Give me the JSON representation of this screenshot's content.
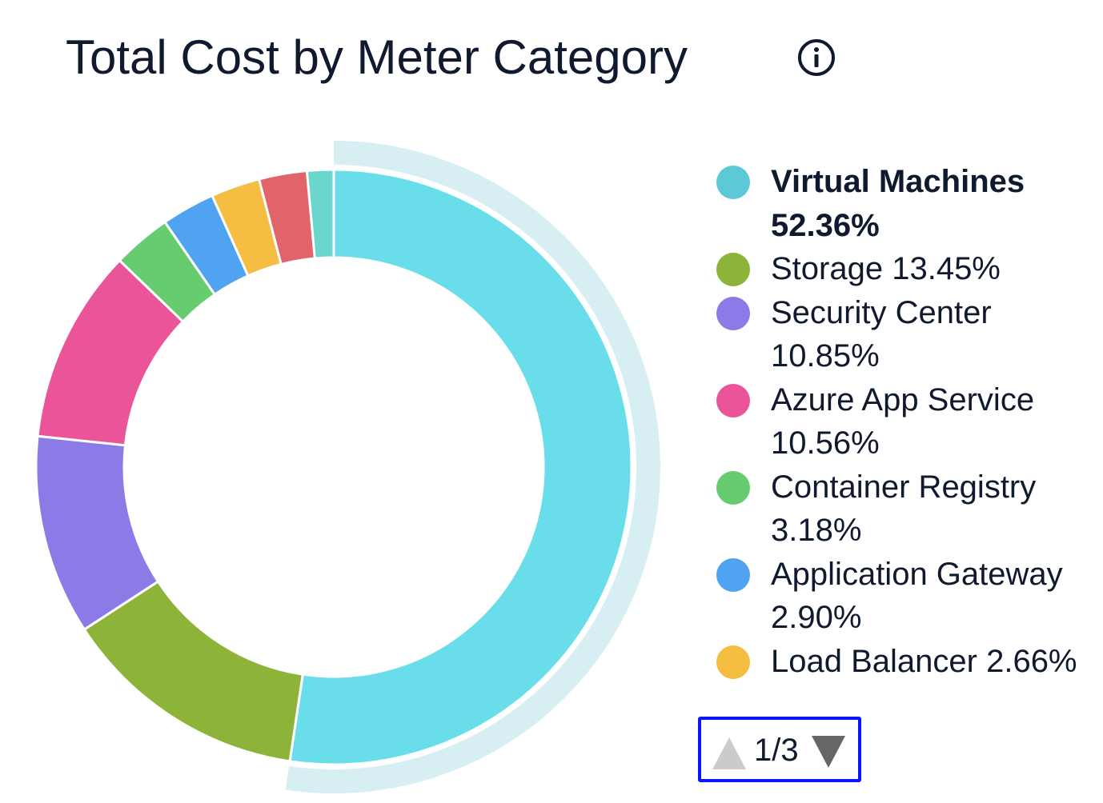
{
  "chart_data": {
    "type": "pie",
    "title": "Total Cost by Meter Category",
    "donut": true,
    "start_angle": "top",
    "direction": "clockwise",
    "highlighted": "Virtual Machines",
    "slices": [
      {
        "name": "Virtual Machines",
        "value": 52.36,
        "label": "52.36%",
        "color": "#6ADDEB",
        "dot": "#5BC9D6"
      },
      {
        "name": "Storage",
        "value": 13.45,
        "label": "13.45%",
        "color": "#8DB438",
        "dot": "#8DB438"
      },
      {
        "name": "Security Center",
        "value": 10.85,
        "label": "10.85%",
        "color": "#8A7BE6",
        "dot": "#8A7BE6"
      },
      {
        "name": "Azure App Service",
        "value": 10.56,
        "label": "10.56%",
        "color": "#EA5599",
        "dot": "#EA5599"
      },
      {
        "name": "Container Registry",
        "value": 3.18,
        "label": "3.18%",
        "color": "#67CB70",
        "dot": "#67CB70"
      },
      {
        "name": "Application Gateway",
        "value": 2.9,
        "label": "2.90%",
        "color": "#4FA3F0",
        "dot": "#4FA3F0"
      },
      {
        "name": "Load Balancer",
        "value": 2.66,
        "label": "2.66%",
        "color": "#F5BE42",
        "dot": "#F5BE42"
      },
      {
        "value": 2.6,
        "color": "#E0646A"
      },
      {
        "value": 1.44,
        "color": "#6AD6CC"
      }
    ],
    "legend": {
      "placement": "right",
      "page": "1/3"
    },
    "highlight_color": "#D7EFF3"
  }
}
